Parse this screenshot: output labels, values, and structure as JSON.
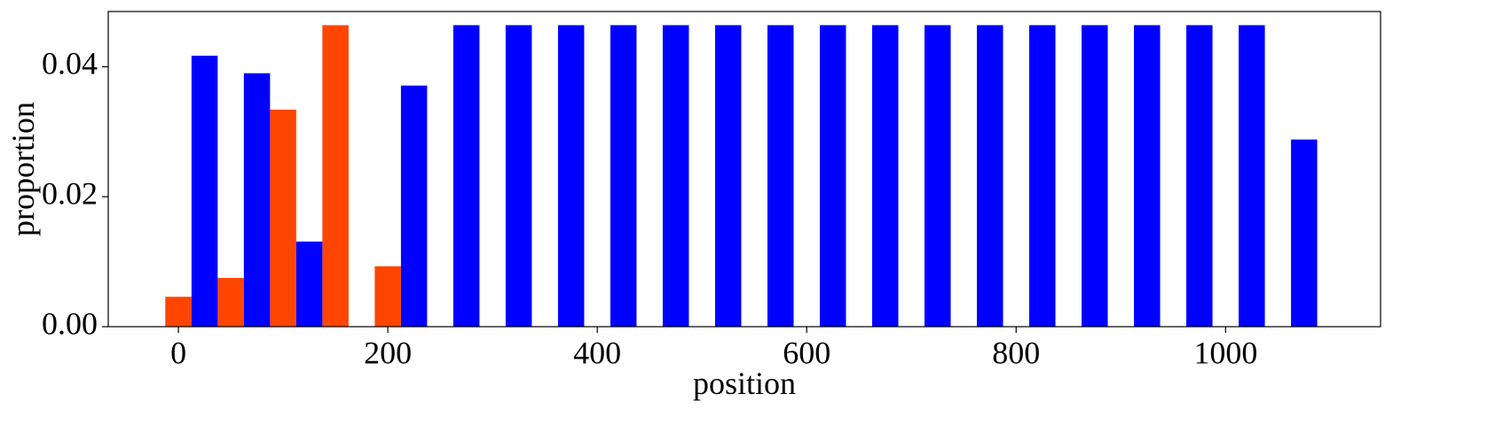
{
  "chart_data": {
    "type": "histogram",
    "x_label": "position",
    "y_label": "proportion",
    "bins": [
      -12.5,
      37.5,
      87.5,
      137.5,
      187.5,
      237.5,
      287.5,
      337.5,
      387.5,
      437.5,
      487.5,
      537.5,
      587.5,
      637.5,
      687.5,
      737.5,
      787.5,
      837.5,
      887.5,
      937.5,
      987.5,
      1037.5,
      1087.5
    ],
    "series": [
      {
        "color": "#ff4500",
        "values": [
          0.0046,
          0.0075,
          0.0334,
          0.0464,
          0.0093,
          0,
          0,
          0,
          0,
          0,
          0,
          0,
          0,
          0,
          0,
          0,
          0,
          0,
          0,
          0,
          0,
          0
        ]
      },
      {
        "color": "#0000ff",
        "values": [
          0.0417,
          0.039,
          0.0131,
          0,
          0.0371,
          0.0464,
          0.0464,
          0.0464,
          0.0464,
          0.0464,
          0.0464,
          0.0464,
          0.0464,
          0.0464,
          0.0464,
          0.0464,
          0.0464,
          0.0464,
          0.0464,
          0.0464,
          0.0464,
          0.0288
        ]
      }
    ],
    "xlim": [
      -67,
      1148
    ],
    "ylim": [
      0,
      0.0485
    ],
    "xticks": [
      0,
      200,
      400,
      600,
      800,
      1000
    ],
    "yticks": [
      {
        "value": 0,
        "label": "0.00"
      },
      0.02,
      0.04
    ]
  }
}
